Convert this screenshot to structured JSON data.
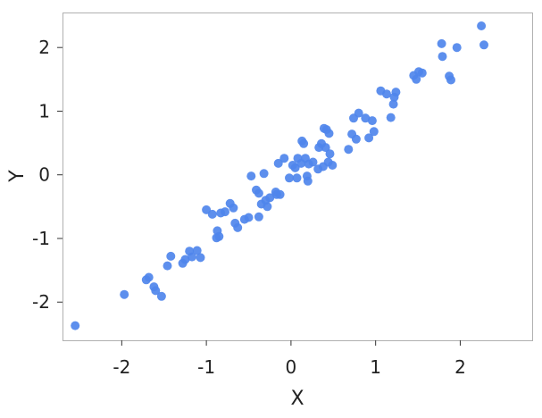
{
  "chart_data": {
    "type": "scatter",
    "title": "",
    "xlabel": "X",
    "ylabel": "Y",
    "xlim": [
      -2.7,
      2.85
    ],
    "ylim": [
      -2.6,
      2.55
    ],
    "x_ticks": [
      -2,
      -1,
      0,
      1,
      2
    ],
    "x_tick_labels": [
      "-2",
      "-1",
      "0",
      "1",
      "2"
    ],
    "y_ticks": [
      -2,
      -1,
      0,
      1,
      2
    ],
    "y_tick_labels": [
      "-2",
      "-1",
      "0",
      "1",
      "2"
    ],
    "grid": false,
    "colors": {
      "point": "#4f86ec",
      "frame": "#b0b0b0",
      "text": "#222222"
    },
    "series": [
      {
        "points": [
          [
            -2.55,
            -2.37
          ],
          [
            -1.97,
            -1.88
          ],
          [
            -1.71,
            -1.65
          ],
          [
            -1.68,
            -1.61
          ],
          [
            -1.62,
            -1.76
          ],
          [
            -1.6,
            -1.82
          ],
          [
            -1.53,
            -1.91
          ],
          [
            -1.46,
            -1.43
          ],
          [
            -1.42,
            -1.28
          ],
          [
            -1.28,
            -1.39
          ],
          [
            -1.25,
            -1.33
          ],
          [
            -1.2,
            -1.2
          ],
          [
            -1.17,
            -1.29
          ],
          [
            -1.11,
            -1.19
          ],
          [
            -1.07,
            -1.3
          ],
          [
            -1.0,
            -0.55
          ],
          [
            -0.93,
            -0.62
          ],
          [
            -0.88,
            -0.99
          ],
          [
            -0.87,
            -0.88
          ],
          [
            -0.85,
            -0.97
          ],
          [
            -0.83,
            -0.6
          ],
          [
            -0.78,
            -0.58
          ],
          [
            -0.72,
            -0.45
          ],
          [
            -0.68,
            -0.52
          ],
          [
            -0.66,
            -0.76
          ],
          [
            -0.63,
            -0.83
          ],
          [
            -0.55,
            -0.7
          ],
          [
            -0.5,
            -0.67
          ],
          [
            -0.47,
            -0.02
          ],
          [
            -0.41,
            -0.24
          ],
          [
            -0.38,
            -0.29
          ],
          [
            -0.38,
            -0.66
          ],
          [
            -0.35,
            -0.46
          ],
          [
            -0.32,
            0.02
          ],
          [
            -0.3,
            -0.4
          ],
          [
            -0.28,
            -0.5
          ],
          [
            -0.25,
            -0.36
          ],
          [
            -0.18,
            -0.27
          ],
          [
            -0.17,
            -0.31
          ],
          [
            -0.15,
            0.18
          ],
          [
            -0.13,
            -0.31
          ],
          [
            -0.08,
            0.26
          ],
          [
            -0.02,
            -0.05
          ],
          [
            0.02,
            0.15
          ],
          [
            0.05,
            0.11
          ],
          [
            0.07,
            -0.05
          ],
          [
            0.08,
            0.26
          ],
          [
            0.12,
            0.18
          ],
          [
            0.13,
            0.53
          ],
          [
            0.15,
            0.49
          ],
          [
            0.17,
            0.26
          ],
          [
            0.19,
            -0.02
          ],
          [
            0.2,
            -0.1
          ],
          [
            0.21,
            0.17
          ],
          [
            0.26,
            0.2
          ],
          [
            0.32,
            0.09
          ],
          [
            0.33,
            0.43
          ],
          [
            0.36,
            0.49
          ],
          [
            0.38,
            0.13
          ],
          [
            0.39,
            0.73
          ],
          [
            0.41,
            0.43
          ],
          [
            0.42,
            0.71
          ],
          [
            0.44,
            0.2
          ],
          [
            0.45,
            0.65
          ],
          [
            0.46,
            0.33
          ],
          [
            0.49,
            0.15
          ],
          [
            0.68,
            0.4
          ],
          [
            0.72,
            0.64
          ],
          [
            0.74,
            0.89
          ],
          [
            0.77,
            0.56
          ],
          [
            0.8,
            0.97
          ],
          [
            0.88,
            0.89
          ],
          [
            0.92,
            0.58
          ],
          [
            0.96,
            0.85
          ],
          [
            0.98,
            0.68
          ],
          [
            1.06,
            1.32
          ],
          [
            1.13,
            1.27
          ],
          [
            1.18,
            0.9
          ],
          [
            1.21,
            1.11
          ],
          [
            1.22,
            1.22
          ],
          [
            1.24,
            1.3
          ],
          [
            1.45,
            1.56
          ],
          [
            1.48,
            1.5
          ],
          [
            1.51,
            1.62
          ],
          [
            1.55,
            1.6
          ],
          [
            1.78,
            2.06
          ],
          [
            1.79,
            1.86
          ],
          [
            1.87,
            1.55
          ],
          [
            1.89,
            1.49
          ],
          [
            1.96,
            2.0
          ],
          [
            2.25,
            2.34
          ],
          [
            2.28,
            2.04
          ]
        ]
      }
    ]
  }
}
